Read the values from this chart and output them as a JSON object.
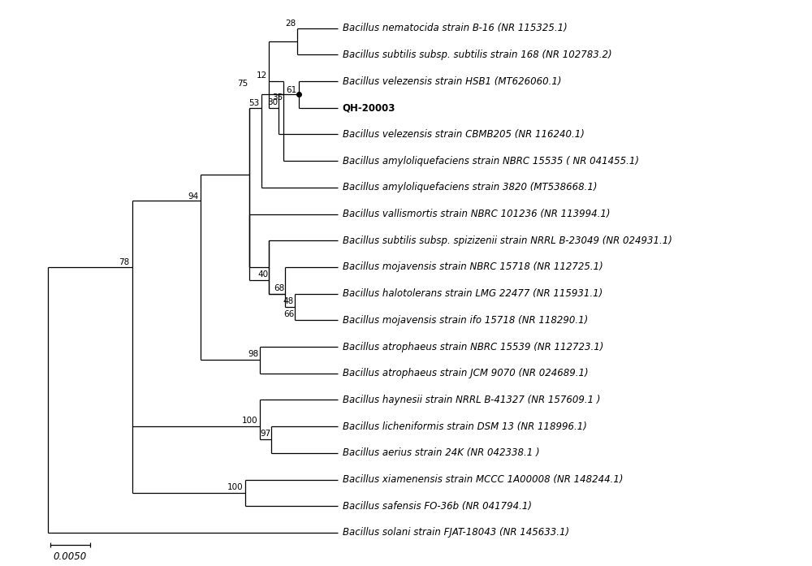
{
  "taxa": [
    "Bacillus nematocida strain B-16 (NR 115325.1)",
    "Bacillus subtilis subsp. subtilis strain 168 (NR 102783.2)",
    "Bacillus velezensis strain HSB1 (MT626060.1)",
    "QH-20003",
    "Bacillus velezensis strain CBMB205 (NR 116240.1)",
    "Bacillus amyloliquefaciens strain NBRC 15535 ( NR 041455.1)",
    "Bacillus amyloliquefaciens strain 3820 (MT538668.1)",
    "Bacillus vallismortis strain NBRC 101236 (NR 113994.1)",
    "Bacillus subtilis subsp. spizizenii strain NRRL B-23049 (NR 024931.1)",
    "Bacillus mojavensis strain NBRC 15718 (NR 112725.1)",
    "Bacillus halotolerans strain LMG 22477 (NR 115931.1)",
    "Bacillus mojavensis strain ifo 15718 (NR 118290.1)",
    "Bacillus atrophaeus strain NBRC 15539 (NR 112723.1)",
    "Bacillus atrophaeus strain JCM 9070 (NR 024689.1)",
    "Bacillus haynesii strain NRRL B-41327 (NR 157609.1 )",
    "Bacillus licheniformis strain DSM 13 (NR 118996.1)",
    "Bacillus aerius strain 24K (NR 042338.1 )",
    "Bacillus xiamenensis strain MCCC 1A00008 (NR 148244.1)",
    "Bacillus safensis FO-36b (NR 041794.1)",
    "Bacillus solani strain FJAT-18043 (NR 145633.1)"
  ],
  "background_color": "#ffffff",
  "line_color": "#000000",
  "text_color": "#000000",
  "label_fontsize": 8.5,
  "bootstrap_fontsize": 7.5,
  "scale_bar_label": "0.0050"
}
